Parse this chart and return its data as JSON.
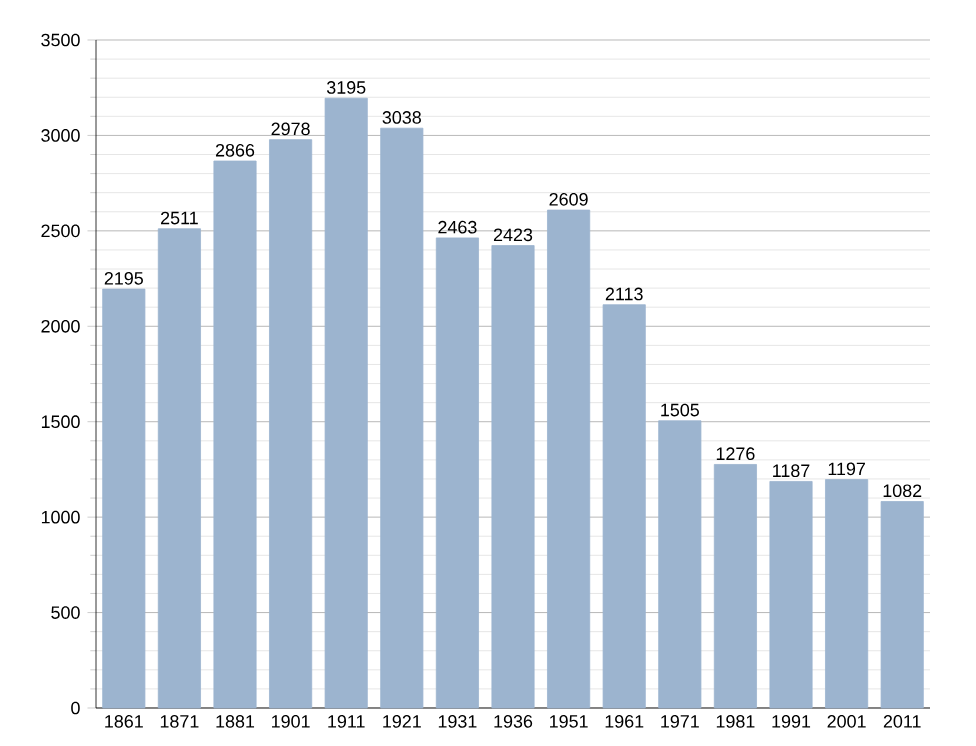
{
  "chart_data": {
    "type": "bar",
    "categories": [
      "1861",
      "1871",
      "1881",
      "1901",
      "1911",
      "1921",
      "1931",
      "1936",
      "1951",
      "1961",
      "1971",
      "1981",
      "1991",
      "2001",
      "2011"
    ],
    "values": [
      2195,
      2511,
      2866,
      2978,
      3195,
      3038,
      2463,
      2423,
      2609,
      2113,
      1505,
      1276,
      1187,
      1197,
      1082
    ],
    "color": "#9cb4cf",
    "ylim": [
      0,
      3500
    ],
    "yticks": [
      0,
      500,
      1000,
      1500,
      2000,
      2500,
      3000,
      3500
    ],
    "grid": "y",
    "data_labels": true
  }
}
